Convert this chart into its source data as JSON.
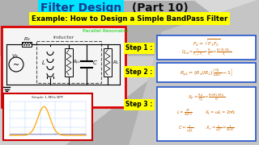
{
  "title1": "Filter Design",
  "title1_highlight_color": "#00e5ff",
  "title1_text_color": "#1a3a8c",
  "title2": " (Part 10)",
  "title2_color": "#111111",
  "subtitle": "Example: How to Design a Simple BandPass Filter",
  "subtitle_bg": "#ffff00",
  "subtitle_color": "#000000",
  "bg_color": "#b0b0b0",
  "bg_light": "#cccccc",
  "parallel_resonator_label": "Parallel Resonator",
  "parallel_resonator_color": "#00cc00",
  "inductor_label": "inductor",
  "step1_label": "Step 1 :",
  "step2_label": "Step 2 :",
  "step3_label": "Step 3 :",
  "step_bg": "#ffff00",
  "step_color": "#000000",
  "circuit_box_color": "#dd0000",
  "formula_box_color": "#2255cc",
  "formula_text_color": "#cc6600",
  "graph_title": "Simple 1-MHz BPF",
  "graph_border_color": "#cc0000"
}
